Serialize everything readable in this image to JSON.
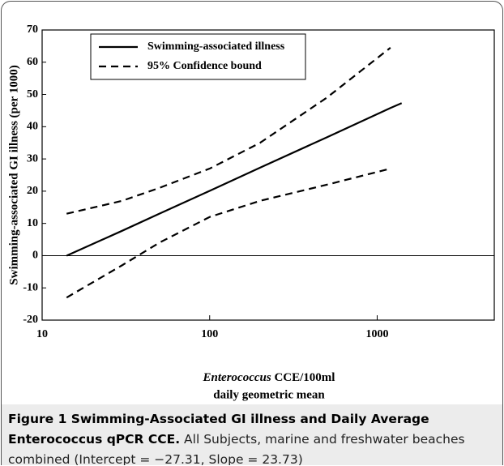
{
  "chart_data": {
    "type": "line",
    "ylabel": "Swimming-associated GI illness (per 1000)",
    "xlabel_italic": "Enterococcus",
    "xlabel": "CCE/100ml",
    "xlabel2": "daily geometric mean",
    "xscale": "log",
    "x": [
      14,
      30,
      50,
      100,
      200,
      500,
      1200,
      1400
    ],
    "series": [
      {
        "name": "Swimming-associated illness",
        "color": "#000000",
        "dash": "solid",
        "values": [
          0,
          7.7,
          13.0,
          20.1,
          27.3,
          36.7,
          45.8,
          47.3
        ]
      },
      {
        "name": "95% Confidence bound",
        "color": "#000000",
        "dash": "dashed",
        "values": [
          13,
          17,
          21,
          27,
          35,
          49,
          64.5,
          null
        ]
      },
      {
        "name": "95% Confidence bound",
        "color": "#000000",
        "dash": "dashed",
        "values": [
          -13,
          -3,
          4,
          12,
          17,
          22,
          27,
          null
        ]
      }
    ],
    "xlim": [
      10,
      5000
    ],
    "xticks": [
      10,
      100,
      1000
    ],
    "ylim": [
      -20,
      70
    ],
    "yticks": [
      -20,
      -10,
      0,
      10,
      20,
      30,
      40,
      50,
      60,
      70
    ],
    "legend": "upper left"
  },
  "caption": {
    "title": "Figure 1 Swimming-Associated GI illness and Daily Average Enterococcus qPCR CCE.",
    "text": "All Subjects, marine and freshwater beaches combined (Intercept = −27.31, Slope = 23.73)"
  }
}
